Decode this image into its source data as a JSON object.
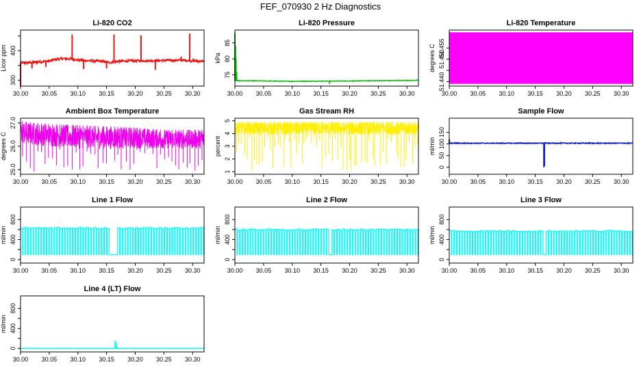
{
  "page": {
    "title": "FEF_070930  2 Hz Diagnostics"
  },
  "chart_data": [
    {
      "type": "line",
      "title": "Li-820 CO2",
      "ylabel": "Licor ppm",
      "xlim": [
        30.0,
        30.32
      ],
      "ylim": [
        280,
        470
      ],
      "xticks": [
        30.0,
        30.05,
        30.1,
        30.15,
        30.2,
        30.25,
        30.3
      ],
      "yticks": [
        300,
        350,
        400,
        450
      ],
      "ytick_labels": [
        "300",
        "",
        "400",
        ""
      ],
      "color": "#ee1111",
      "style": "noisy",
      "baseline": [
        [
          30.0,
          358
        ],
        [
          30.02,
          360
        ],
        [
          30.05,
          365
        ],
        [
          30.06,
          370
        ],
        [
          30.07,
          373
        ],
        [
          30.09,
          372
        ],
        [
          30.1,
          368
        ],
        [
          30.12,
          366
        ],
        [
          30.14,
          364
        ],
        [
          30.155,
          360
        ],
        [
          30.17,
          364
        ],
        [
          30.2,
          366
        ],
        [
          30.25,
          367
        ],
        [
          30.28,
          368
        ],
        [
          30.32,
          364
        ]
      ],
      "noise": 4,
      "spikes": [
        [
          30.0,
          280
        ],
        [
          30.02,
          340
        ],
        [
          30.044,
          345
        ],
        [
          30.09,
          455
        ],
        [
          30.11,
          338
        ],
        [
          30.15,
          340
        ],
        [
          30.163,
          455
        ],
        [
          30.21,
          452
        ],
        [
          30.235,
          335
        ],
        [
          30.28,
          380
        ],
        [
          30.295,
          458
        ]
      ]
    },
    {
      "type": "line",
      "title": "Li-820 Pressure",
      "ylabel": "kPa",
      "xlim": [
        30.0,
        30.32
      ],
      "ylim": [
        71.5,
        89
      ],
      "xticks": [
        30.0,
        30.05,
        30.1,
        30.15,
        30.2,
        30.25,
        30.3
      ],
      "yticks": [
        75,
        80,
        85
      ],
      "ytick_labels": [
        "75",
        "80",
        "85"
      ],
      "color": "#11bb11",
      "style": "noisy",
      "baseline": [
        [
          30.0,
          73.2
        ],
        [
          30.1,
          73.0
        ],
        [
          30.2,
          73.1
        ],
        [
          30.32,
          73.3
        ]
      ],
      "noise": 0.1,
      "spikes": [
        [
          30.0,
          88
        ],
        [
          30.001,
          84
        ],
        [
          30.002,
          80
        ],
        [
          30.003,
          76
        ],
        [
          30.165,
          72.2
        ]
      ]
    },
    {
      "type": "line",
      "title": "Li-820 Temperature",
      "ylabel": "degrees C",
      "xlim": [
        30.0,
        30.32
      ],
      "ylim": [
        51.438,
        51.463
      ],
      "xticks": [
        30.0,
        30.05,
        30.1,
        30.15,
        30.2,
        30.25,
        30.3
      ],
      "yticks": [
        51.44,
        51.445,
        51.45,
        51.455
      ],
      "ytick_labels": [
        "51.440",
        "",
        "51.450",
        "51.455"
      ],
      "color": "#ff00ff",
      "style": "fill",
      "fill_range": [
        51.439,
        51.462
      ]
    },
    {
      "type": "line",
      "title": "Ambient Box Temperature",
      "ylabel": "degrees C",
      "xlim": [
        30.0,
        30.32
      ],
      "ylim": [
        24.8,
        27.2
      ],
      "xticks": [
        30.0,
        30.05,
        30.1,
        30.15,
        30.2,
        30.25,
        30.3
      ],
      "yticks": [
        25,
        26,
        27
      ],
      "ytick_labels": [
        "25.0",
        "26.0",
        "27.0"
      ],
      "color": "#ee00ee",
      "style": "band",
      "upper": [
        [
          30.0,
          27.1
        ],
        [
          30.02,
          27.0
        ],
        [
          30.05,
          26.95
        ],
        [
          30.1,
          26.9
        ],
        [
          30.15,
          26.85
        ],
        [
          30.2,
          26.8
        ],
        [
          30.25,
          26.7
        ],
        [
          30.32,
          26.7
        ]
      ],
      "lower": [
        [
          30.0,
          26.1
        ],
        [
          30.05,
          26.0
        ],
        [
          30.1,
          25.9
        ],
        [
          30.15,
          25.9
        ],
        [
          30.2,
          25.9
        ],
        [
          30.25,
          25.9
        ],
        [
          30.32,
          25.9
        ]
      ],
      "dips": 48,
      "dip_min": 24.9
    },
    {
      "type": "line",
      "title": "Gas Stream RH",
      "ylabel": "percent",
      "xlim": [
        30.0,
        30.32
      ],
      "ylim": [
        0.8,
        5.2
      ],
      "xticks": [
        30.0,
        30.05,
        30.1,
        30.15,
        30.2,
        30.25,
        30.3
      ],
      "yticks": [
        1,
        2,
        3,
        4,
        5
      ],
      "ytick_labels": [
        "1",
        "2",
        "3",
        "4",
        "5"
      ],
      "color": "#ffee00",
      "style": "band",
      "upper": [
        [
          30.0,
          4.9
        ],
        [
          30.32,
          4.9
        ]
      ],
      "lower": [
        [
          30.0,
          3.9
        ],
        [
          30.32,
          3.9
        ]
      ],
      "dips": 70,
      "dip_min": 1.0
    },
    {
      "type": "line",
      "title": "Sample Flow",
      "ylabel": "ml/min",
      "xlim": [
        30.0,
        30.32
      ],
      "ylim": [
        -30,
        210
      ],
      "xticks": [
        30.0,
        30.05,
        30.1,
        30.15,
        30.2,
        30.25,
        30.3
      ],
      "yticks": [
        0,
        50,
        100,
        150
      ],
      "ytick_labels": [
        "0",
        "50",
        "100",
        "150"
      ],
      "color": "#1122cc",
      "style": "noisy",
      "baseline": [
        [
          30.0,
          103
        ],
        [
          30.32,
          103
        ]
      ],
      "noise": 2,
      "spikes": [
        [
          30.0,
          120
        ],
        [
          30.165,
          0
        ],
        [
          30.166,
          5
        ],
        [
          30.168,
          108
        ]
      ]
    },
    {
      "type": "line",
      "title": "Line 1 Flow",
      "ylabel": "ml/min",
      "xlim": [
        30.0,
        30.32
      ],
      "ylim": [
        -70,
        1050
      ],
      "xticks": [
        30.0,
        30.05,
        30.1,
        30.15,
        30.2,
        30.25,
        30.3
      ],
      "yticks": [
        0,
        200,
        400,
        600,
        800
      ],
      "ytick_labels": [
        "0",
        "",
        "400",
        "",
        "800"
      ],
      "color": "#00ffff",
      "style": "pulse",
      "high": 630,
      "low": 100,
      "pulses": 70,
      "gap": [
        30.155,
        30.167
      ]
    },
    {
      "type": "line",
      "title": "Line 2 Flow",
      "ylabel": "ml/min",
      "xlim": [
        30.0,
        30.32
      ],
      "ylim": [
        -70,
        1050
      ],
      "xticks": [
        30.0,
        30.05,
        30.1,
        30.15,
        30.2,
        30.25,
        30.3
      ],
      "yticks": [
        0,
        200,
        400,
        600,
        800
      ],
      "ytick_labels": [
        "0",
        "",
        "400",
        "",
        "800"
      ],
      "color": "#00ffff",
      "style": "pulse",
      "high": 600,
      "low": 100,
      "pulses": 70,
      "gap": [
        30.163,
        30.168
      ]
    },
    {
      "type": "line",
      "title": "Line 3 Flow",
      "ylabel": "ml/min",
      "xlim": [
        30.0,
        30.32
      ],
      "ylim": [
        -70,
        1050
      ],
      "xticks": [
        30.0,
        30.05,
        30.1,
        30.15,
        30.2,
        30.25,
        30.3
      ],
      "yticks": [
        0,
        200,
        400,
        600,
        800
      ],
      "ytick_labels": [
        "0",
        "",
        "400",
        "",
        "800"
      ],
      "color": "#00ffff",
      "style": "pulse",
      "high": 570,
      "low": 100,
      "pulses": 70,
      "gap": [
        30.16,
        30.168
      ]
    },
    {
      "type": "line",
      "title": "Line 4 (LT) Flow",
      "ylabel": "ml/min",
      "xlim": [
        30.0,
        30.32
      ],
      "ylim": [
        -70,
        1050
      ],
      "xticks": [
        30.0,
        30.05,
        30.1,
        30.15,
        30.2,
        30.25,
        30.3
      ],
      "yticks": [
        0,
        200,
        400,
        600,
        800
      ],
      "ytick_labels": [
        "0",
        "",
        "400",
        "",
        "800"
      ],
      "color": "#00ffff",
      "style": "noisy",
      "baseline": [
        [
          30.0,
          0
        ],
        [
          30.32,
          0
        ]
      ],
      "noise": 1,
      "spikes": [
        [
          30.165,
          150
        ],
        [
          30.166,
          130
        ],
        [
          30.167,
          60
        ]
      ]
    }
  ]
}
